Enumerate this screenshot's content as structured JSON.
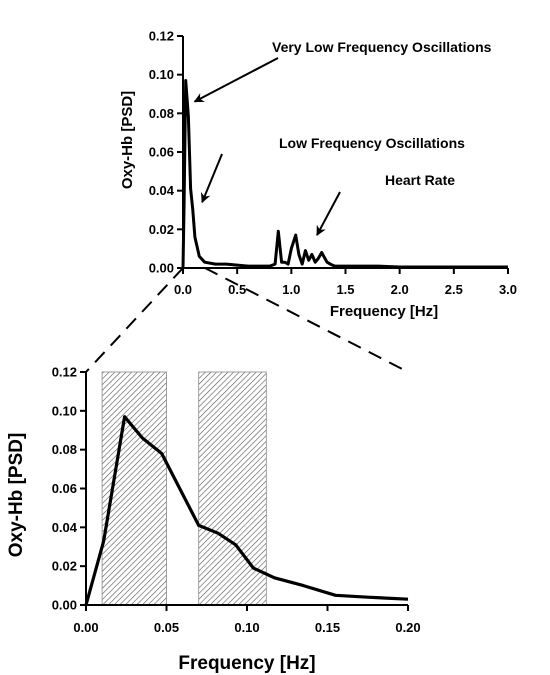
{
  "chart_data": [
    {
      "type": "line",
      "xlabel": "Frequency [Hz]",
      "ylabel": "Oxy-Hb [PSD]",
      "xlim": [
        0.0,
        3.0
      ],
      "ylim": [
        0.0,
        0.12
      ],
      "x_ticks": [
        "0.0",
        "0.5",
        "1.0",
        "1.5",
        "2.0",
        "2.5",
        "3.0"
      ],
      "y_ticks": [
        "0.00",
        "0.02",
        "0.04",
        "0.06",
        "0.08",
        "0.10",
        "0.12"
      ],
      "series": [
        {
          "x": [
            0.0,
            0.01,
            0.025,
            0.04,
            0.05,
            0.07,
            0.09,
            0.11,
            0.15,
            0.2,
            0.3,
            0.4,
            0.5,
            0.6,
            0.7,
            0.8,
            0.85,
            0.88,
            0.91,
            0.94,
            0.97,
            1.0,
            1.04,
            1.07,
            1.1,
            1.13,
            1.16,
            1.19,
            1.22,
            1.25,
            1.28,
            1.3,
            1.33,
            1.36,
            1.4,
            1.5,
            1.6,
            1.7,
            1.8,
            2.0,
            2.2,
            2.5,
            2.8,
            3.0
          ],
          "y": [
            0.0,
            0.034,
            0.097,
            0.086,
            0.078,
            0.041,
            0.03,
            0.016,
            0.006,
            0.003,
            0.002,
            0.002,
            0.0015,
            0.001,
            0.001,
            0.001,
            0.002,
            0.019,
            0.003,
            0.003,
            0.002,
            0.01,
            0.017,
            0.007,
            0.002,
            0.009,
            0.004,
            0.007,
            0.003,
            0.005,
            0.008,
            0.006,
            0.003,
            0.002,
            0.001,
            0.001,
            0.001,
            0.001,
            0.001,
            0.0005,
            0.0005,
            0.0005,
            0.0005,
            0.0005
          ]
        }
      ],
      "annotations": [
        {
          "text": "Very Low Frequency Oscillations",
          "point": [
            0.07,
            0.085
          ]
        },
        {
          "text": "Low Frequency Oscillations",
          "point": [
            0.14,
            0.033
          ]
        },
        {
          "text": "Heart Rate",
          "point": [
            1.2,
            0.016
          ]
        }
      ]
    },
    {
      "type": "line",
      "xlabel": "Frequency [Hz]",
      "ylabel": "Oxy-Hb [PSD]",
      "xlim": [
        0.0,
        0.2
      ],
      "ylim": [
        0.0,
        0.12
      ],
      "x_ticks": [
        "0.00",
        "0.05",
        "0.10",
        "0.15",
        "0.20"
      ],
      "y_ticks": [
        "0.00",
        "0.02",
        "0.04",
        "0.06",
        "0.08",
        "0.10",
        "0.12"
      ],
      "shaded_bands": [
        [
          0.01,
          0.05
        ],
        [
          0.07,
          0.112
        ]
      ],
      "series": [
        {
          "x": [
            0.0,
            0.011,
            0.024,
            0.035,
            0.047,
            0.07,
            0.082,
            0.093,
            0.104,
            0.117,
            0.135,
            0.155,
            0.175,
            0.2
          ],
          "y": [
            0.0,
            0.033,
            0.097,
            0.086,
            0.078,
            0.041,
            0.037,
            0.031,
            0.019,
            0.014,
            0.01,
            0.005,
            0.004,
            0.003
          ]
        }
      ]
    }
  ]
}
